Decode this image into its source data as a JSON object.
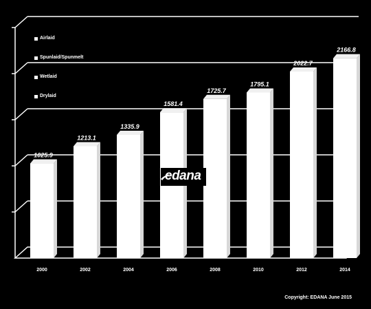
{
  "chart_data": {
    "type": "bar",
    "categories": [
      "2000",
      "2002",
      "2004",
      "2006",
      "2008",
      "2010",
      "2012",
      "2014"
    ],
    "values": [
      1025.9,
      1213.1,
      1335.9,
      1581.4,
      1725.7,
      1795.1,
      2022.7,
      2166.8
    ],
    "value_labels": [
      "1025.9",
      "1213.1",
      "1335.9",
      "1581.4",
      "1725.7",
      "1795.1",
      "2022.7",
      "2166.8"
    ],
    "legend": [
      "Airlaid",
      "Spunlaid/Spunmelt",
      "Wetlaid",
      "Drylaid"
    ],
    "legend_placement": "top-left",
    "ylim": [
      0,
      2500
    ],
    "grid": true,
    "style": "3d-columns",
    "colors": {
      "background": "#000000",
      "bars": "#ffffff",
      "grid": "#ffffff",
      "text": "#ffffff"
    }
  },
  "logo": {
    "text": "edana"
  },
  "copyright": "Copyright: EDANA June 2015"
}
